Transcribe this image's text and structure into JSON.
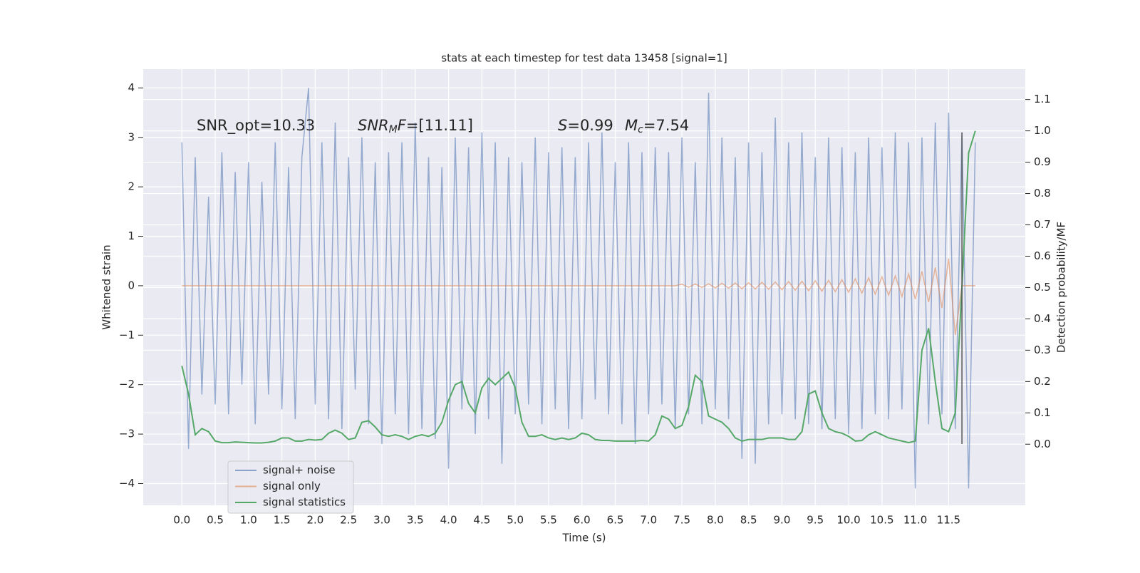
{
  "chart_data": {
    "type": "line",
    "title": "stats at each timestep for test data 13458 [signal=1]",
    "xlabel": "Time (s)",
    "ylabel": "Whitened strain",
    "y2label": "Detection probability/MF",
    "annotations": [
      [
        "SNR_opt=10.33"
      ],
      [
        "SNR",
        "M",
        "F",
        "=[11.11]"
      ],
      [
        "S",
        "=0.99"
      ],
      [
        "M",
        "c",
        "=7.54"
      ]
    ],
    "x": [
      0,
      0.1,
      0.2,
      0.3,
      0.4,
      0.5,
      0.6,
      0.7,
      0.8,
      0.9,
      1,
      1.1,
      1.2,
      1.3,
      1.4,
      1.5,
      1.6,
      1.7,
      1.8,
      1.9,
      2,
      2.1,
      2.2,
      2.3,
      2.4,
      2.5,
      2.6,
      2.7,
      2.8,
      2.9,
      3,
      3.1,
      3.2,
      3.3,
      3.4,
      3.5,
      3.6,
      3.7,
      3.8,
      3.9,
      4,
      4.1,
      4.2,
      4.3,
      4.4,
      4.5,
      4.6,
      4.7,
      4.8,
      4.9,
      5,
      5.1,
      5.2,
      5.3,
      5.4,
      5.5,
      5.6,
      5.7,
      5.8,
      5.9,
      6,
      6.1,
      6.2,
      6.3,
      6.4,
      6.5,
      6.6,
      6.7,
      6.8,
      6.9,
      7,
      7.1,
      7.2,
      7.3,
      7.4,
      7.5,
      7.6,
      7.7,
      7.8,
      7.9,
      8,
      8.1,
      8.2,
      8.3,
      8.4,
      8.5,
      8.6,
      8.7,
      8.8,
      8.9,
      9,
      9.1,
      9.2,
      9.3,
      9.4,
      9.5,
      9.6,
      9.7,
      9.8,
      9.9,
      10,
      10.1,
      10.2,
      10.3,
      10.4,
      10.5,
      10.6,
      10.7,
      10.8,
      10.9,
      11,
      11.1,
      11.2,
      11.3,
      11.4,
      11.5,
      11.6,
      11.7,
      11.8,
      11.9
    ],
    "series": [
      {
        "name": "signal+ noise",
        "color": "#4c72b0",
        "values": [
          2.9,
          -3.3,
          2.6,
          -2.2,
          1.8,
          -2.4,
          2.7,
          -2.6,
          2.3,
          -2.0,
          2.5,
          -2.8,
          2.1,
          -2.2,
          2.9,
          -2.5,
          2.4,
          -2.7,
          2.6,
          4.0,
          -2.4,
          2.9,
          -2.7,
          3.3,
          -2.9,
          2.6,
          -2.1,
          3.0,
          -2.8,
          2.5,
          -3.2,
          2.7,
          -2.6,
          2.9,
          -3.0,
          3.3,
          -2.9,
          2.6,
          -3.1,
          2.4,
          -3.7,
          3.0,
          -2.5,
          2.8,
          -3.0,
          3.1,
          -2.7,
          2.9,
          -3.6,
          2.6,
          -2.6,
          2.5,
          -2.4,
          3.0,
          -2.8,
          2.7,
          -2.5,
          2.8,
          -2.9,
          2.6,
          -2.7,
          2.9,
          -2.3,
          3.1,
          -2.6,
          2.5,
          -2.8,
          2.9,
          -3.2,
          2.7,
          -2.6,
          2.8,
          -2.4,
          2.7,
          -2.9,
          3.0,
          -2.6,
          2.5,
          -2.8,
          3.9,
          -2.5,
          3.0,
          -2.7,
          2.6,
          -3.5,
          2.9,
          -3.6,
          2.7,
          -2.8,
          3.4,
          -2.6,
          2.9,
          -2.7,
          3.1,
          -2.8,
          2.6,
          -2.9,
          3.0,
          -2.7,
          2.8,
          -3.0,
          2.7,
          -2.9,
          3.0,
          -2.6,
          2.8,
          -2.7,
          3.1,
          -2.5,
          2.9,
          -4.1,
          3.0,
          -2.8,
          3.3,
          -2.6,
          3.5,
          -2.9,
          3.1,
          -4.1,
          2.9
        ]
      },
      {
        "name": "signal only",
        "color": "#dd8452",
        "values": [
          0,
          0,
          0,
          0,
          0,
          0,
          0,
          0,
          0,
          0,
          0,
          0,
          0,
          0,
          0,
          0,
          0,
          0,
          0,
          0,
          0,
          0,
          0,
          0,
          0,
          0,
          0,
          0,
          0,
          0,
          0,
          0,
          0,
          0,
          0,
          0,
          0,
          0,
          0,
          0,
          0,
          0,
          0,
          0,
          0,
          0,
          0,
          0,
          0,
          0,
          0,
          0,
          0,
          0,
          0,
          0,
          0,
          0,
          0,
          0,
          0,
          0,
          0,
          0,
          0,
          0,
          0,
          0,
          0,
          0,
          0,
          0,
          0,
          0,
          0,
          0.03,
          -0.03,
          0.035,
          -0.035,
          0.04,
          -0.045,
          0.05,
          -0.05,
          0.055,
          -0.06,
          0.06,
          -0.065,
          0.07,
          -0.07,
          0.075,
          -0.08,
          0.085,
          -0.09,
          0.09,
          -0.1,
          0.1,
          -0.11,
          0.11,
          -0.12,
          0.12,
          -0.13,
          0.14,
          -0.15,
          0.16,
          -0.17,
          0.18,
          -0.19,
          0.2,
          -0.22,
          0.24,
          -0.27,
          0.29,
          -0.33,
          0.37,
          -0.45,
          0.55,
          -1.0,
          0,
          0,
          0
        ]
      },
      {
        "name": "signal statistics",
        "color": "#55a868",
        "axis": "y2",
        "values": [
          0.25,
          0.16,
          0.03,
          0.05,
          0.04,
          0.01,
          0.005,
          0.005,
          0.007,
          0.006,
          0.005,
          0.004,
          0.004,
          0.006,
          0.01,
          0.02,
          0.02,
          0.01,
          0.01,
          0.015,
          0.013,
          0.015,
          0.035,
          0.045,
          0.035,
          0.015,
          0.02,
          0.07,
          0.075,
          0.055,
          0.03,
          0.025,
          0.03,
          0.025,
          0.015,
          0.025,
          0.03,
          0.025,
          0.035,
          0.07,
          0.14,
          0.19,
          0.2,
          0.13,
          0.1,
          0.18,
          0.21,
          0.19,
          0.21,
          0.23,
          0.18,
          0.07,
          0.025,
          0.025,
          0.03,
          0.02,
          0.015,
          0.02,
          0.015,
          0.02,
          0.035,
          0.03,
          0.015,
          0.012,
          0.012,
          0.01,
          0.01,
          0.01,
          0.01,
          0.012,
          0.01,
          0.03,
          0.09,
          0.08,
          0.05,
          0.06,
          0.12,
          0.22,
          0.2,
          0.09,
          0.08,
          0.07,
          0.05,
          0.02,
          0.01,
          0.015,
          0.015,
          0.015,
          0.02,
          0.02,
          0.02,
          0.015,
          0.015,
          0.04,
          0.16,
          0.17,
          0.1,
          0.05,
          0.04,
          0.035,
          0.025,
          0.01,
          0.012,
          0.03,
          0.04,
          0.03,
          0.02,
          0.015,
          0.01,
          0.005,
          0.01,
          0.3,
          0.37,
          0.2,
          0.05,
          0.04,
          0.1,
          0.5,
          0.93,
          1.0
        ]
      }
    ],
    "vline": {
      "x": 11.7,
      "ymin": -3.2,
      "ymax": 3.1,
      "color": "#555555"
    },
    "xlim": [
      -0.58,
      12.65
    ],
    "ylim": [
      -4.44,
      4.38
    ],
    "y2lim": [
      -0.195,
      1.197
    ],
    "xticks": [
      {
        "value": 0,
        "label": "0.0"
      },
      0.5,
      {
        "value": 1,
        "label": "1.0"
      },
      1.5,
      {
        "value": 2,
        "label": "2.0"
      },
      2.5,
      {
        "value": 3,
        "label": "3.0"
      },
      3.5,
      {
        "value": 4,
        "label": "4.0"
      },
      4.5,
      {
        "value": 5,
        "label": "5.0"
      },
      5.5,
      {
        "value": 6,
        "label": "6.0"
      },
      6.5,
      {
        "value": 7,
        "label": "7.0"
      },
      7.5,
      {
        "value": 8,
        "label": "8.0"
      },
      8.5,
      {
        "value": 9,
        "label": "9.0"
      },
      9.5,
      {
        "value": 10,
        "label": "10.0"
      },
      10.5,
      {
        "value": 11,
        "label": "11.0"
      },
      11.5
    ],
    "yticks": [
      {
        "value": -4,
        "label": "−4"
      },
      {
        "value": -3,
        "label": "−3"
      },
      {
        "value": -2,
        "label": "−2"
      },
      {
        "value": -1,
        "label": "−1"
      },
      0,
      1,
      2,
      3,
      4
    ],
    "y2ticks": [
      {
        "value": 0,
        "label": "0.0"
      },
      0.1,
      0.2,
      0.3,
      0.4,
      0.5,
      0.6,
      0.7,
      0.8,
      0.9,
      {
        "value": 1,
        "label": "1.0"
      },
      1.1
    ],
    "grid": true
  }
}
